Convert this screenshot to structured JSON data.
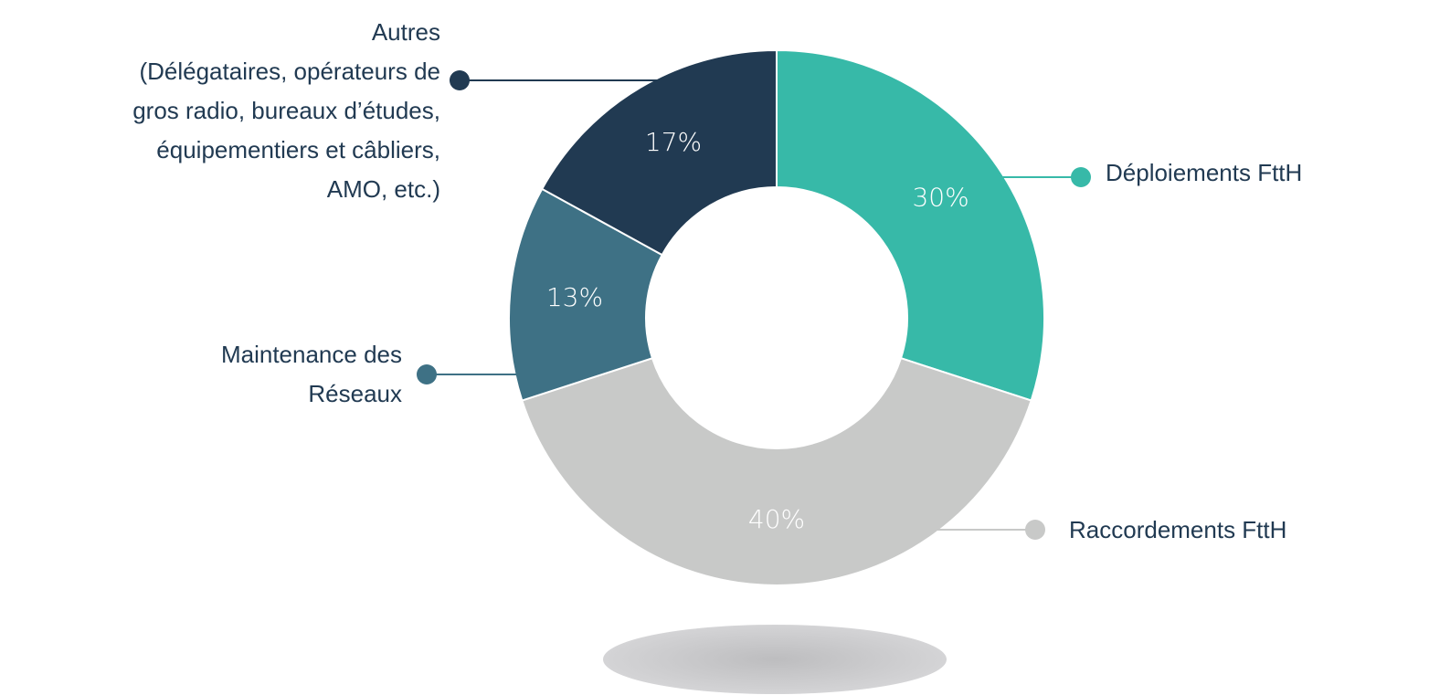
{
  "chart_data": {
    "type": "donut",
    "categories": [
      "Déploiements FttH",
      "Raccordements FttH",
      "Maintenance des\nRéseaux",
      "Autres\n(Délégataires, opérateurs de\ngros radio, bureaux d’études,\néquipementiers et câbliers,\nAMO, etc.)"
    ],
    "values": [
      30,
      40,
      13,
      17
    ],
    "value_labels": [
      "30%",
      "40%",
      "13%",
      "17%"
    ],
    "colors": [
      "#37b9a8",
      "#c8c9c8",
      "#3e7185",
      "#213a52"
    ]
  }
}
